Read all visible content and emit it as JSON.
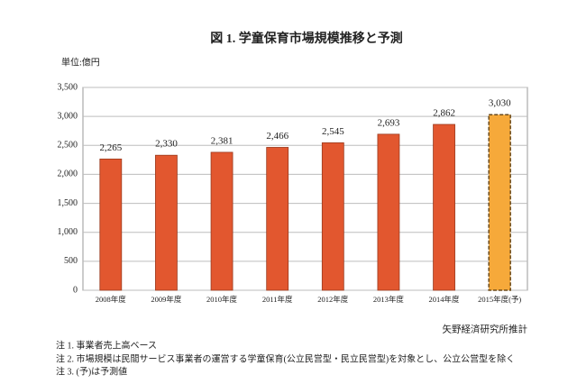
{
  "chart_data": {
    "type": "bar",
    "title": "図 1.  学童保育市場規模推移と予測",
    "unit_label": "単位:億円",
    "categories": [
      "2008年度",
      "2009年度",
      "2010年度",
      "2011年度",
      "2012年度",
      "2013年度",
      "2014年度",
      "2015年度(予)"
    ],
    "values": [
      2265,
      2330,
      2381,
      2466,
      2545,
      2693,
      2862,
      3030
    ],
    "value_labels": [
      "2,265",
      "2,330",
      "2,381",
      "2,466",
      "2,545",
      "2,693",
      "2,862",
      "3,030"
    ],
    "colors": [
      "#e2572f",
      "#e2572f",
      "#e2572f",
      "#e2572f",
      "#e2572f",
      "#e2572f",
      "#e2572f",
      "#f6a93a"
    ],
    "border_styles": [
      "solid",
      "solid",
      "solid",
      "solid",
      "solid",
      "solid",
      "solid",
      "dashed"
    ],
    "ylim": [
      0,
      3500
    ],
    "yticks": [
      0,
      500,
      {
        "value": 1000,
        "label": "1,000"
      },
      {
        "value": 1500,
        "label": "1,500"
      },
      {
        "value": 2000,
        "label": "2,000"
      },
      {
        "value": 2500,
        "label": "2,500"
      },
      {
        "value": 3000,
        "label": "3,000"
      },
      {
        "value": 3500,
        "label": "3,500"
      }
    ],
    "grid": true,
    "source": "矢野経済研究所推計",
    "notes": [
      "注 1. 事業者売上高ベース",
      "注 2. 市場規模は民間サービス事業者の運営する学童保育(公立民営型・民立民営型)を対象とし、公立公営型を除く",
      "注 3. (予)は予測値"
    ]
  }
}
